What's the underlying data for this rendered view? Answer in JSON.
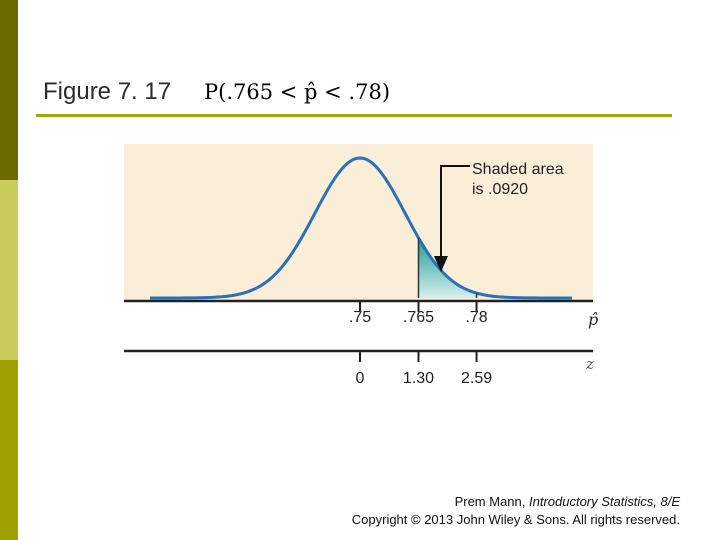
{
  "slide": {
    "title": "Figure 7. 17",
    "formula": "P(.765 < p̂ < .78)",
    "colors": {
      "sidebar_dark": "#6b6b00",
      "sidebar_light": "#c8cc5a",
      "sidebar_mid": "#9ea000",
      "rule": "#a6a600",
      "figure_bg": "#fbeed9",
      "curve": "#2a72b5",
      "shade_top": "#1a9c96",
      "shade_bottom": "#d8eeec"
    },
    "credit": {
      "line1_prefix": "Prem Mann, ",
      "line1_book": "Introductory Statistics, 8/E",
      "line2": "Copyright © 2013 John Wiley & Sons. All rights reserved."
    }
  },
  "figure": {
    "annotation": {
      "line1": "Shaded area",
      "line2": "is .0920"
    },
    "phat_axis": {
      "label": "p̂",
      "ticks": [
        {
          "label": ".75",
          "value": 0.75
        },
        {
          "label": ".765",
          "value": 0.765
        },
        {
          "label": ".78",
          "value": 0.78
        }
      ]
    },
    "z_axis": {
      "label": "z",
      "ticks": [
        {
          "label": "0",
          "value": 0
        },
        {
          "label": "1.30",
          "value": 1.3
        },
        {
          "label": "2.59",
          "value": 2.59
        }
      ]
    }
  }
}
